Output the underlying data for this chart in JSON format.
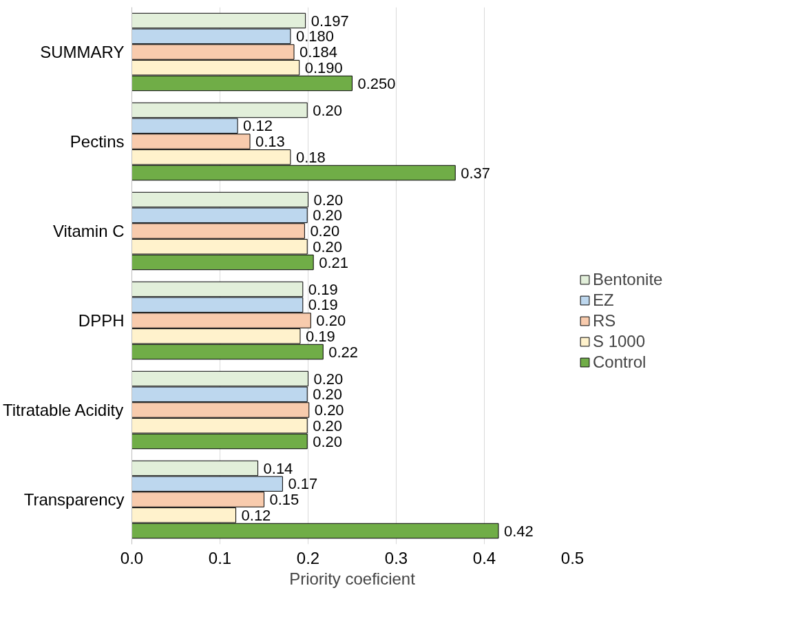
{
  "chart_data": {
    "type": "bar",
    "orientation": "horizontal",
    "xlabel": "Priority coeficient",
    "categories": [
      "SUMMARY",
      "Pectins",
      "Vitamin C",
      "DPPH",
      "Titratable Acidity",
      "Transparency"
    ],
    "series": [
      {
        "name": "Bentonite",
        "color": "#e2efda",
        "values": [
          0.197,
          0.199,
          0.2,
          0.194,
          0.2,
          0.143
        ],
        "value_labels": [
          "0.197",
          "0.20",
          "0.20",
          "0.19",
          "0.20",
          "0.14"
        ]
      },
      {
        "name": "EZ",
        "color": "#bdd7ee",
        "values": [
          0.18,
          0.12,
          0.199,
          0.194,
          0.199,
          0.171
        ],
        "value_labels": [
          "0.180",
          "0.12",
          "0.20",
          "0.19",
          "0.20",
          "0.17"
        ]
      },
      {
        "name": "RS",
        "color": "#f8cbad",
        "values": [
          0.184,
          0.134,
          0.196,
          0.203,
          0.201,
          0.15
        ],
        "value_labels": [
          "0.184",
          "0.13",
          "0.20",
          "0.20",
          "0.20",
          "0.15"
        ]
      },
      {
        "name": "S 1000",
        "color": "#fff2cc",
        "values": [
          0.19,
          0.18,
          0.199,
          0.191,
          0.199,
          0.118
        ],
        "value_labels": [
          "0.190",
          "0.18",
          "0.20",
          "0.19",
          "0.20",
          "0.12"
        ]
      },
      {
        "name": "Control",
        "color": "#70ad47",
        "values": [
          0.25,
          0.367,
          0.206,
          0.217,
          0.199,
          0.416
        ],
        "value_labels": [
          "0.250",
          "0.37",
          "0.21",
          "0.22",
          "0.20",
          "0.42"
        ]
      }
    ],
    "xlim": [
      0,
      0.5
    ],
    "xticks": [
      {
        "value": 0,
        "label": "0.0"
      },
      0.1,
      0.2,
      0.3,
      0.4,
      0.5
    ],
    "grid": "x",
    "legend": "right"
  }
}
